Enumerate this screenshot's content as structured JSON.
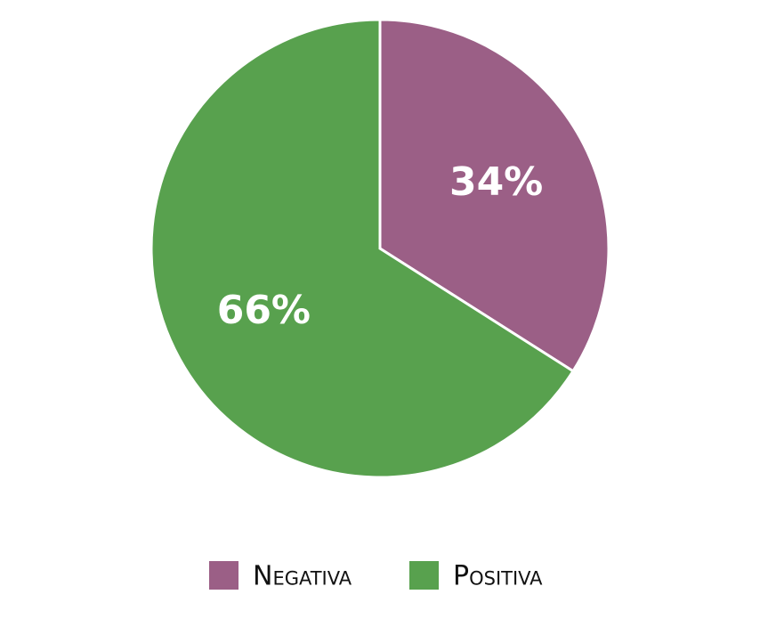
{
  "chart_data": {
    "type": "pie",
    "categories": [
      "Negativa",
      "Positiva"
    ],
    "values": [
      34,
      66
    ],
    "value_labels": [
      "34%",
      "66%"
    ],
    "colors": [
      "#9b5f86",
      "#58a14e"
    ],
    "legend": "bottom"
  }
}
